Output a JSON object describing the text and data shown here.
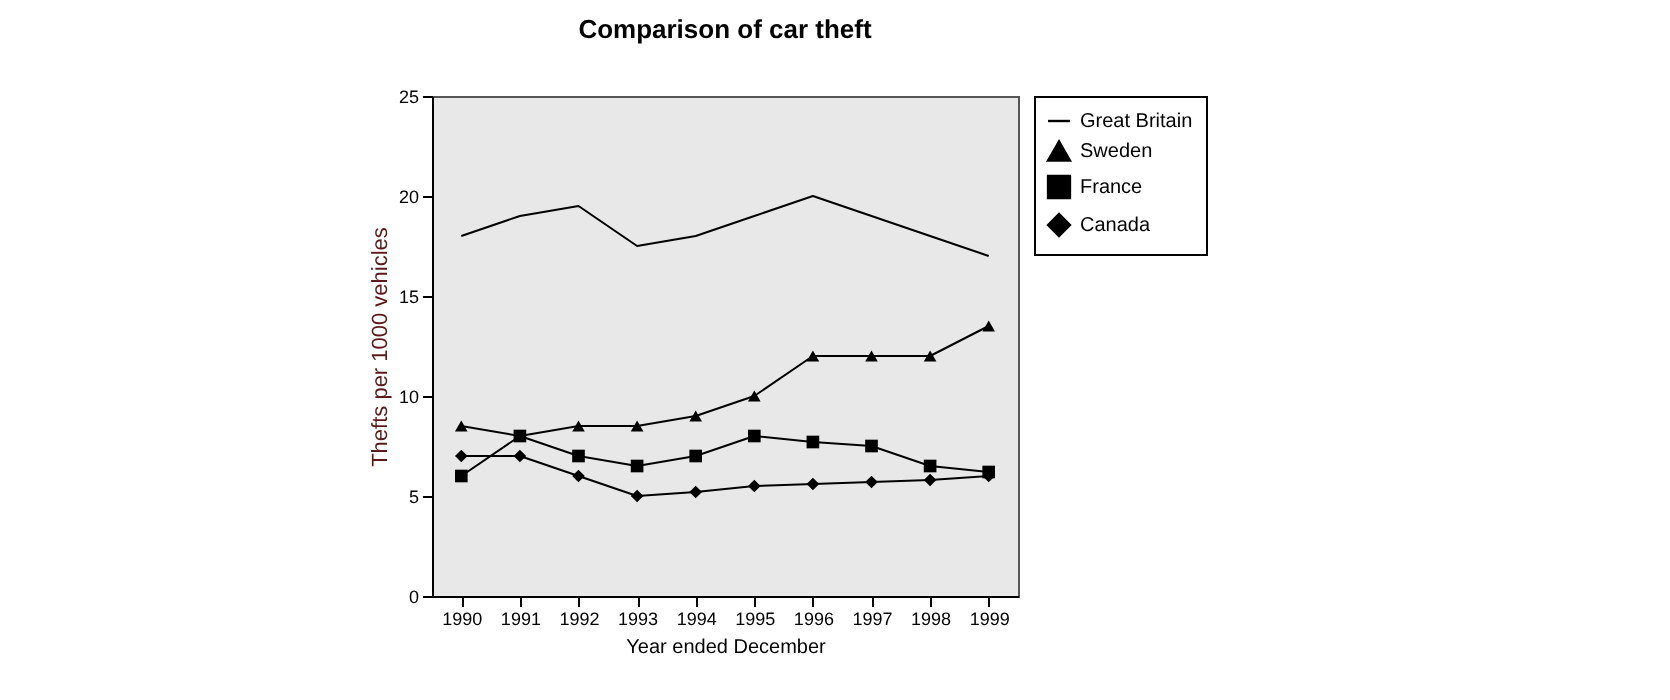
{
  "chart_data": {
    "type": "line",
    "title": "Comparison of car theft",
    "xlabel": "Year ended December",
    "ylabel": "Thefts per 1000 vehicles",
    "categories": [
      "1990",
      "1991",
      "1992",
      "1993",
      "1994",
      "1995",
      "1996",
      "1997",
      "1998",
      "1999"
    ],
    "ylim": [
      0,
      25
    ],
    "yticks": [
      0,
      5,
      10,
      15,
      20,
      25
    ],
    "grid": false,
    "legend": "right",
    "series": [
      {
        "name": "Great Britain",
        "color": "#000000",
        "marker": "none",
        "values": [
          18,
          19,
          19.5,
          17.5,
          18,
          19,
          20,
          19,
          18,
          17
        ]
      },
      {
        "name": "Sweden",
        "color": "#000000",
        "marker": "triangle",
        "values": [
          8.5,
          8,
          8.5,
          8.5,
          9,
          10,
          12,
          12,
          12,
          13.5
        ]
      },
      {
        "name": "France",
        "color": "#000000",
        "marker": "square",
        "values": [
          6,
          8,
          7,
          6.5,
          7,
          8,
          7.7,
          7.5,
          6.5,
          6.2
        ]
      },
      {
        "name": "Canada",
        "color": "#000000",
        "marker": "diamond",
        "values": [
          7,
          7,
          6,
          5,
          5.2,
          5.5,
          5.6,
          5.7,
          5.8,
          6
        ]
      }
    ]
  }
}
